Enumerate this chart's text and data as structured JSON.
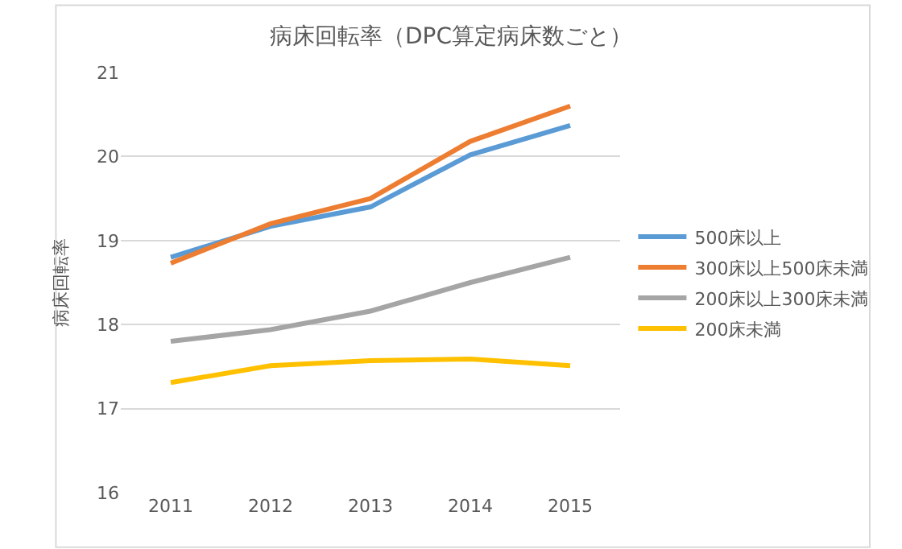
{
  "chart_data": {
    "type": "line",
    "title": "病床回転率（DPC算定病床数ごと）",
    "ylabel": "病床回転率",
    "categories": [
      "2011",
      "2012",
      "2013",
      "2014",
      "2015"
    ],
    "series": [
      {
        "name": "500床以上",
        "color": "#5b9bd5",
        "values": [
          18.8,
          19.17,
          19.4,
          20.02,
          20.37
        ]
      },
      {
        "name": "300床以上500床未満",
        "color": "#ed7d31",
        "values": [
          18.73,
          19.2,
          19.5,
          20.18,
          20.6
        ]
      },
      {
        "name": "200床以上300床未満",
        "color": "#a5a5a5",
        "values": [
          17.8,
          17.94,
          18.16,
          18.5,
          18.8
        ]
      },
      {
        "name": "200床未満",
        "color": "#ffc000",
        "values": [
          17.31,
          17.51,
          17.57,
          17.59,
          17.51
        ]
      }
    ],
    "ylim": [
      16,
      21
    ],
    "yticks": [
      16,
      17,
      18,
      19,
      20,
      21
    ],
    "grid": "y",
    "legend": "right",
    "marker": "none",
    "line_style": "solid"
  }
}
